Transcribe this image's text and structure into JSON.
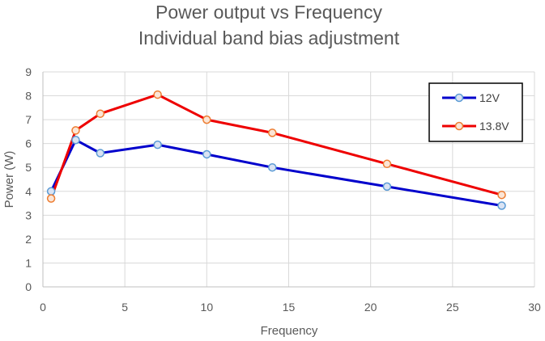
{
  "chart_data": {
    "type": "line",
    "title": "Power output vs Frequency",
    "subtitle": "Individual band bias adjustment",
    "xlabel": "Frequency",
    "ylabel": "Power (W)",
    "xlim": [
      0,
      30
    ],
    "ylim": [
      0,
      9
    ],
    "xticks": [
      0,
      5,
      10,
      15,
      20,
      25,
      30
    ],
    "yticks": [
      0,
      1,
      2,
      3,
      4,
      5,
      6,
      7,
      8,
      9
    ],
    "grid": true,
    "legend_position": "top-right",
    "series": [
      {
        "name": "12V",
        "color": "#0000CC",
        "marker_edge": "#5B9BD5",
        "x": [
          0.5,
          2,
          3.5,
          7,
          10,
          14,
          21,
          28
        ],
        "y": [
          4.0,
          6.15,
          5.6,
          5.95,
          5.55,
          5.0,
          4.2,
          3.4
        ]
      },
      {
        "name": "13.8V",
        "color": "#EE0000",
        "marker_edge": "#ED7D31",
        "x": [
          0.5,
          2,
          3.5,
          7,
          10,
          14,
          21,
          28
        ],
        "y": [
          3.7,
          6.55,
          7.25,
          8.05,
          7.0,
          6.45,
          5.15,
          3.85
        ]
      }
    ]
  }
}
